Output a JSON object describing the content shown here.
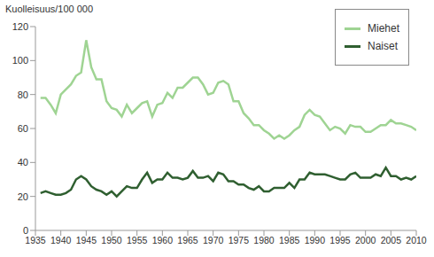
{
  "chart_data": {
    "type": "line",
    "y_label": "Kuolleisuus/100 000",
    "x": [
      1936,
      1937,
      1938,
      1939,
      1940,
      1941,
      1942,
      1943,
      1944,
      1945,
      1946,
      1947,
      1948,
      1949,
      1950,
      1951,
      1952,
      1953,
      1954,
      1955,
      1956,
      1957,
      1958,
      1959,
      1960,
      1961,
      1962,
      1963,
      1964,
      1965,
      1966,
      1967,
      1968,
      1969,
      1970,
      1971,
      1972,
      1973,
      1974,
      1975,
      1976,
      1977,
      1978,
      1979,
      1980,
      1981,
      1982,
      1983,
      1984,
      1985,
      1986,
      1987,
      1988,
      1989,
      1990,
      1991,
      1992,
      1993,
      1994,
      1995,
      1996,
      1997,
      1998,
      1999,
      2000,
      2001,
      2002,
      2003,
      2004,
      2005,
      2006,
      2007,
      2008,
      2009,
      2010
    ],
    "series": [
      {
        "name": "Miehet",
        "color": "#9fd493",
        "values": [
          78,
          78,
          74,
          69,
          80,
          83,
          86,
          91,
          93,
          112,
          96,
          89,
          89,
          76,
          72,
          71,
          67,
          74,
          69,
          72,
          75,
          76,
          67,
          74,
          75,
          81,
          78,
          84,
          84,
          87,
          90,
          90,
          86,
          80,
          81,
          87,
          88,
          86,
          76,
          76,
          69,
          66,
          62,
          62,
          59,
          57,
          54,
          56,
          54,
          56,
          59,
          61,
          68,
          71,
          68,
          67,
          63,
          59,
          61,
          60,
          57,
          62,
          61,
          61,
          58,
          58,
          60,
          62,
          62,
          65,
          63,
          63,
          62,
          61,
          59
        ]
      },
      {
        "name": "Naiset",
        "color": "#2f5f30",
        "values": [
          22,
          23,
          22,
          21,
          21,
          22,
          24,
          30,
          32,
          30,
          26,
          24,
          23,
          21,
          23,
          20,
          23,
          26,
          25,
          25,
          30,
          34,
          28,
          30,
          30,
          34,
          31,
          31,
          30,
          31,
          35,
          31,
          31,
          32,
          29,
          34,
          33,
          29,
          29,
          27,
          27,
          25,
          24,
          26,
          23,
          23,
          25,
          25,
          25,
          28,
          25,
          30,
          30,
          34,
          33,
          33,
          33,
          32,
          31,
          30,
          30,
          33,
          34,
          31,
          31,
          31,
          33,
          32,
          37,
          32,
          32,
          30,
          31,
          30,
          32
        ]
      }
    ],
    "xlim": [
      1935,
      2010
    ],
    "xticks": [
      1935,
      1940,
      1945,
      1950,
      1955,
      1960,
      1965,
      1970,
      1975,
      1980,
      1985,
      1990,
      1995,
      2000,
      2005,
      2010
    ],
    "ylim": [
      0,
      120
    ],
    "yticks": [
      0,
      20,
      40,
      60,
      80,
      100,
      120
    ],
    "grid": false,
    "legend": "upper right"
  }
}
